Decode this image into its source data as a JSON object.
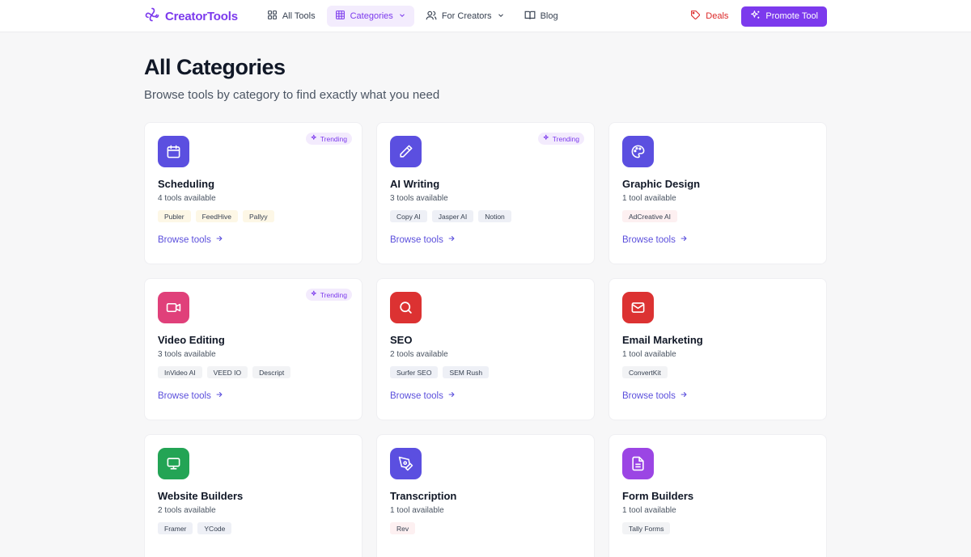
{
  "header": {
    "logo_text": "CreatorTools",
    "nav": [
      {
        "label": "All Tools",
        "icon": "grid-icon"
      },
      {
        "label": "Categories",
        "icon": "table-icon",
        "active": true
      },
      {
        "label": "For Creators",
        "icon": "users-icon"
      },
      {
        "label": "Blog",
        "icon": "book-icon"
      }
    ],
    "deals_label": "Deals",
    "promote_label": "Promote Tool"
  },
  "page": {
    "title": "All Categories",
    "subtitle": "Browse tools by category to find exactly what you need"
  },
  "colors": {
    "brand": "#7c3aed",
    "link": "#5b4fdc",
    "deals": "#dc2626"
  },
  "categories": [
    {
      "name": "Scheduling",
      "count": "4 tools available",
      "trending": "Trending",
      "icon": "calendar-icon",
      "icon_bg": "#5b4fe0",
      "tags": [
        "Publer",
        "FeedHive",
        "Pallyy"
      ],
      "tag_bg": "#fdf7e6",
      "browse": "Browse tools"
    },
    {
      "name": "AI Writing",
      "count": "3 tools available",
      "trending": "Trending",
      "icon": "pencil-icon",
      "icon_bg": "#5b4fe0",
      "tags": [
        "Copy AI",
        "Jasper AI",
        "Notion"
      ],
      "tag_bg": "#eef0f6",
      "browse": "Browse tools"
    },
    {
      "name": "Graphic Design",
      "count": "1 tool available",
      "trending": "",
      "icon": "palette-icon",
      "icon_bg": "#5b4fe0",
      "tags": [
        "AdCreative AI"
      ],
      "tag_bg": "#fdf0f1",
      "browse": "Browse tools"
    },
    {
      "name": "Video Editing",
      "count": "3 tools available",
      "trending": "Trending",
      "icon": "video-icon",
      "icon_bg": "#e0407a",
      "tags": [
        "InVideo AI",
        "VEED IO",
        "Descript"
      ],
      "tag_bg": "#f2f3f5",
      "browse": "Browse tools"
    },
    {
      "name": "SEO",
      "count": "2 tools available",
      "trending": "",
      "icon": "search-icon",
      "icon_bg": "#dc3232",
      "tags": [
        "Surfer SEO",
        "SEM Rush"
      ],
      "tag_bg": "#eef0f6",
      "browse": "Browse tools"
    },
    {
      "name": "Email Marketing",
      "count": "1 tool available",
      "trending": "",
      "icon": "mail-icon",
      "icon_bg": "#dc3232",
      "tags": [
        "ConvertKit"
      ],
      "tag_bg": "#f2f3f5",
      "browse": "Browse tools"
    },
    {
      "name": "Website Builders",
      "count": "2 tools available",
      "trending": "",
      "icon": "monitor-icon",
      "icon_bg": "#23a455",
      "tags": [
        "Framer",
        "YCode"
      ],
      "tag_bg": "#eef0f6",
      "browse": ""
    },
    {
      "name": "Transcription",
      "count": "1 tool available",
      "trending": "",
      "icon": "pen-tool-icon",
      "icon_bg": "#5b4fe0",
      "tags": [
        "Rev"
      ],
      "tag_bg": "#fdf0f1",
      "browse": ""
    },
    {
      "name": "Form Builders",
      "count": "1 tool available",
      "trending": "",
      "icon": "form-icon",
      "icon_bg": "#9b45e4",
      "tags": [
        "Tally Forms"
      ],
      "tag_bg": "#f2f3f5",
      "browse": ""
    }
  ]
}
